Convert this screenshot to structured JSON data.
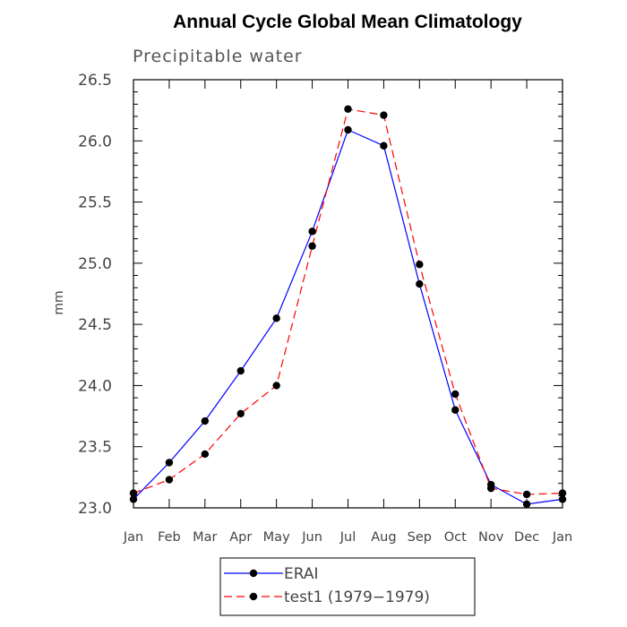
{
  "chart_data": {
    "type": "line",
    "title": "Annual Cycle Global Mean Climatology",
    "subtitle": "Precipitable water",
    "ylabel": "mm",
    "xlabel": "",
    "categories": [
      "Jan",
      "Feb",
      "Mar",
      "Apr",
      "May",
      "Jun",
      "Jul",
      "Aug",
      "Sep",
      "Oct",
      "Nov",
      "Dec",
      "Jan"
    ],
    "ylim": [
      23.0,
      26.5
    ],
    "yticks": [
      "23.0",
      "23.5",
      "24.0",
      "24.5",
      "25.0",
      "25.5",
      "26.0",
      "26.5"
    ],
    "grid": false,
    "legend_position": "bottom",
    "series": [
      {
        "name": "ERAI",
        "color": "#0000ff",
        "line_style": "solid",
        "marker": "filled-circle",
        "values": [
          23.07,
          23.37,
          23.71,
          24.12,
          24.55,
          25.26,
          26.09,
          25.96,
          24.83,
          23.8,
          23.19,
          23.03,
          23.07
        ]
      },
      {
        "name": "test1 (1979−1979)",
        "color": "#ff0000",
        "line_style": "dashed",
        "marker": "filled-circle",
        "values": [
          23.12,
          23.23,
          23.44,
          23.77,
          24.0,
          25.14,
          26.26,
          26.21,
          24.99,
          23.93,
          23.16,
          23.11,
          23.12
        ]
      }
    ]
  }
}
